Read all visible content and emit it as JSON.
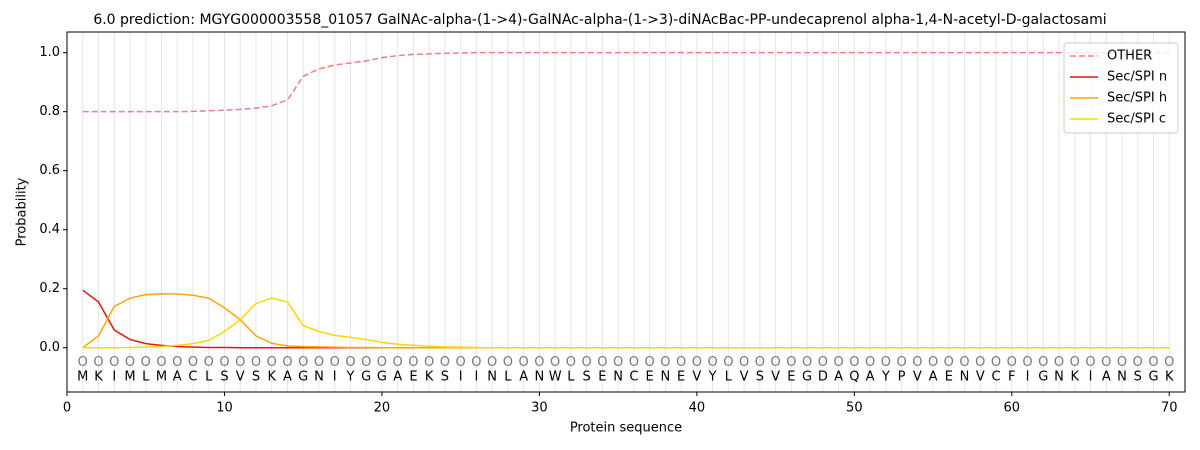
{
  "chart_data": {
    "type": "line",
    "title": "6.0 prediction: MGYG000003558_01057 GalNAc-alpha-(1->4)-GalNAc-alpha-(1->3)-diNAcBac-PP-undecaprenol alpha-1,4-N-acetyl-D-galactosami",
    "x_label": "Protein sequence",
    "y_label": "Probability",
    "x": [
      1,
      2,
      3,
      4,
      5,
      6,
      7,
      8,
      9,
      10,
      11,
      12,
      13,
      14,
      15,
      16,
      17,
      18,
      19,
      20,
      21,
      22,
      23,
      24,
      25,
      26,
      27,
      28,
      29,
      30,
      31,
      32,
      33,
      34,
      35,
      36,
      37,
      38,
      39,
      40,
      41,
      42,
      43,
      44,
      45,
      46,
      47,
      48,
      49,
      50,
      51,
      52,
      53,
      54,
      55,
      56,
      57,
      58,
      59,
      60,
      61,
      62,
      63,
      64,
      65,
      66,
      67,
      68,
      69,
      70
    ],
    "sequence": [
      "M",
      "K",
      "I",
      "M",
      "L",
      "M",
      "A",
      "C",
      "L",
      "S",
      "V",
      "S",
      "K",
      "A",
      "G",
      "N",
      "I",
      "Y",
      "G",
      "G",
      "A",
      "E",
      "K",
      "S",
      "I",
      "I",
      "N",
      "L",
      "A",
      "N",
      "W",
      "L",
      "S",
      "E",
      "N",
      "C",
      "E",
      "N",
      "E",
      "V",
      "Y",
      "L",
      "V",
      "S",
      "V",
      "E",
      "G",
      "D",
      "A",
      "Q",
      "A",
      "Y",
      "P",
      "V",
      "A",
      "E",
      "N",
      "V",
      "C",
      "F",
      "I",
      "G",
      "N",
      "K",
      "I",
      "A",
      "N",
      "S",
      "G",
      "K"
    ],
    "region_labels": [
      "O",
      "O",
      "O",
      "O",
      "O",
      "O",
      "O",
      "O",
      "O",
      "O",
      "O",
      "O",
      "O",
      "O",
      "O",
      "O",
      "O",
      "O",
      "O",
      "O",
      "O",
      "O",
      "O",
      "O",
      "O",
      "O",
      "O",
      "O",
      "O",
      "O",
      "O",
      "O",
      "O",
      "O",
      "O",
      "O",
      "O",
      "O",
      "O",
      "O",
      "O",
      "O",
      "O",
      "O",
      "O",
      "O",
      "O",
      "O",
      "O",
      "O",
      "O",
      "O",
      "O",
      "O",
      "O",
      "O",
      "O",
      "O",
      "O",
      "O",
      "O",
      "O",
      "O",
      "O",
      "O",
      "O",
      "O",
      "O",
      "O",
      "O"
    ],
    "series": [
      {
        "name": "OTHER",
        "color": "#f08080",
        "linestyle": "dashed",
        "values": [
          0.8,
          0.8,
          0.8,
          0.8,
          0.8,
          0.8,
          0.8,
          0.801,
          0.803,
          0.805,
          0.808,
          0.812,
          0.82,
          0.84,
          0.92,
          0.945,
          0.958,
          0.965,
          0.972,
          0.983,
          0.99,
          0.994,
          0.996,
          0.998,
          0.999,
          1,
          1,
          1,
          1,
          1,
          1,
          1,
          1,
          1,
          1,
          1,
          1,
          1,
          1,
          1,
          1,
          1,
          1,
          1,
          1,
          1,
          1,
          1,
          1,
          1,
          1,
          1,
          1,
          1,
          1,
          1,
          1,
          1,
          1,
          1,
          1,
          1,
          1,
          1,
          1,
          1,
          1,
          1,
          1,
          1
        ]
      },
      {
        "name": "Sec/SPI n",
        "color": "#e8160c",
        "linestyle": "solid",
        "values": [
          0.195,
          0.155,
          0.06,
          0.028,
          0.014,
          0.008,
          0.004,
          0.002,
          0.001,
          0.001,
          0,
          0,
          0,
          0,
          0,
          0,
          0,
          0,
          0,
          0,
          0,
          0,
          0,
          0,
          0,
          0,
          0,
          0,
          0,
          0,
          0,
          0,
          0,
          0,
          0,
          0,
          0,
          0,
          0,
          0,
          0,
          0,
          0,
          0,
          0,
          0,
          0,
          0,
          0,
          0,
          0,
          0,
          0,
          0,
          0,
          0,
          0,
          0,
          0,
          0,
          0,
          0,
          0,
          0,
          0,
          0,
          0,
          0,
          0,
          0
        ]
      },
      {
        "name": "Sec/SPI h",
        "color": "#ffa500",
        "linestyle": "solid",
        "values": [
          0,
          0.04,
          0.14,
          0.168,
          0.18,
          0.183,
          0.182,
          0.178,
          0.168,
          0.135,
          0.095,
          0.04,
          0.015,
          0.006,
          0.004,
          0.003,
          0.002,
          0.001,
          0.001,
          0,
          0,
          0,
          0,
          0,
          0,
          0,
          0,
          0,
          0,
          0,
          0,
          0,
          0,
          0,
          0,
          0,
          0,
          0,
          0,
          0,
          0,
          0,
          0,
          0,
          0,
          0,
          0,
          0,
          0,
          0,
          0,
          0,
          0,
          0,
          0,
          0,
          0,
          0,
          0,
          0,
          0,
          0,
          0,
          0,
          0,
          0,
          0,
          0,
          0,
          0
        ]
      },
      {
        "name": "Sec/SPI c",
        "color": "#ffd700",
        "linestyle": "solid",
        "values": [
          0,
          0,
          0,
          0.001,
          0.002,
          0.004,
          0.008,
          0.014,
          0.025,
          0.055,
          0.095,
          0.15,
          0.168,
          0.155,
          0.075,
          0.055,
          0.042,
          0.035,
          0.028,
          0.018,
          0.012,
          0.008,
          0.005,
          0.003,
          0.002,
          0.001,
          0,
          0,
          0,
          0,
          0,
          0,
          0,
          0,
          0,
          0,
          0,
          0,
          0,
          0,
          0,
          0,
          0,
          0,
          0,
          0,
          0,
          0,
          0,
          0,
          0,
          0,
          0,
          0,
          0,
          0,
          0,
          0,
          0,
          0,
          0,
          0,
          0,
          0,
          0,
          0,
          0,
          0,
          0,
          0
        ]
      }
    ],
    "xlim": [
      0,
      71
    ],
    "ylim": [
      -0.15,
      1.07
    ],
    "xticks": [
      0,
      10,
      20,
      30,
      40,
      50,
      60,
      70
    ],
    "yticks": [
      {
        "value": 0,
        "label": "0.0"
      },
      {
        "value": 0.2,
        "label": "0.2"
      },
      {
        "value": 0.4,
        "label": "0.4"
      },
      {
        "value": 0.6,
        "label": "0.6"
      },
      {
        "value": 0.8,
        "label": "0.8"
      },
      {
        "value": 1,
        "label": "1.0"
      }
    ],
    "grid": true,
    "legend": "upper right"
  }
}
